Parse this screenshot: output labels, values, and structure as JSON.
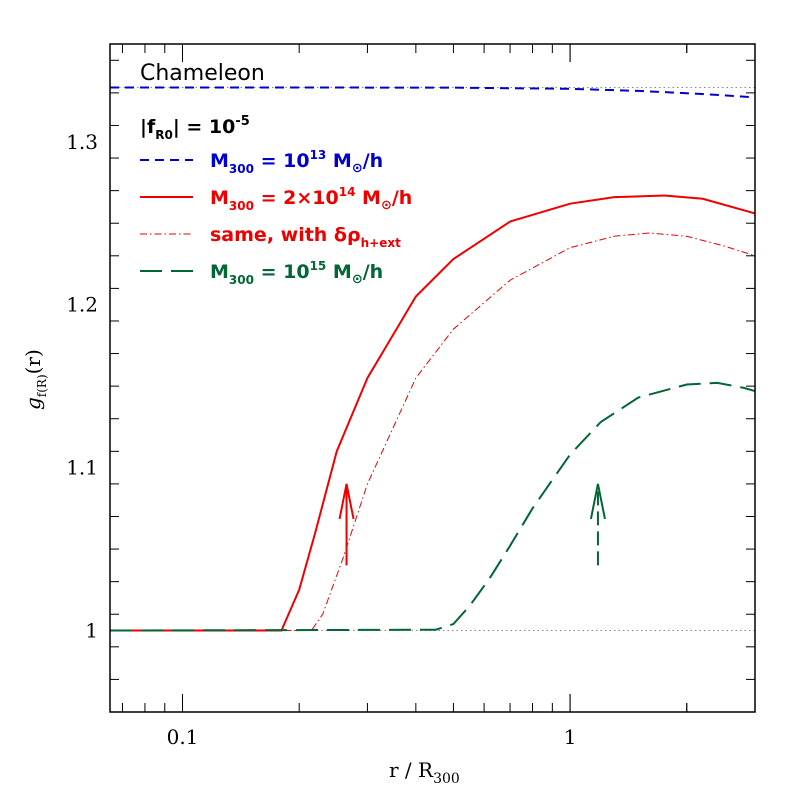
{
  "chart_data": {
    "type": "line",
    "xscale": "log",
    "xlim": [
      0.065,
      3.0
    ],
    "ylim": [
      0.95,
      1.36
    ],
    "xlabel": "r / R",
    "xlabel_sub": "300",
    "ylabel": "g",
    "ylabel_sub": "f(R)",
    "ylabel_suffix": "(r)",
    "xticks": [
      {
        "value": 0.1,
        "label": "0.1"
      },
      {
        "value": 1,
        "label": "1"
      }
    ],
    "yticks": [
      {
        "value": 1.0,
        "label": "1"
      },
      {
        "value": 1.1,
        "label": "1.1"
      },
      {
        "value": 1.2,
        "label": "1.2"
      },
      {
        "value": 1.3,
        "label": "1.3"
      }
    ],
    "annotations": {
      "title": "Chameleon",
      "param_main": "|f",
      "param_sub": "R0",
      "param_rest": "| = 10",
      "param_exp": "-5"
    },
    "reference_lines": [
      {
        "y": 1.0,
        "style": "dotted",
        "color": "#888888"
      },
      {
        "y": 1.3333,
        "style": "dotted",
        "color": "#888888"
      }
    ],
    "series": [
      {
        "name": "M300 = 10^13 M⊙/h",
        "color": "#0000cc",
        "dash": "9,6",
        "width": 2,
        "x": [
          0.065,
          0.2,
          0.5,
          1.0,
          1.5,
          2.0,
          2.5,
          3.0
        ],
        "y": [
          1.3333,
          1.3333,
          1.3332,
          1.3325,
          1.3312,
          1.3298,
          1.3285,
          1.3272
        ]
      },
      {
        "name": "M300 = 2×10^14 M⊙/h",
        "color": "#ee0000",
        "dash": "",
        "width": 2,
        "x": [
          0.065,
          0.18,
          0.2,
          0.22,
          0.25,
          0.3,
          0.4,
          0.5,
          0.7,
          1.0,
          1.3,
          1.75,
          2.2,
          3.0
        ],
        "y": [
          1.0,
          1.0,
          1.025,
          1.06,
          1.11,
          1.155,
          1.205,
          1.228,
          1.251,
          1.262,
          1.266,
          1.267,
          1.265,
          1.256
        ]
      },
      {
        "name": "same, with δρh+ext",
        "color": "#ee0000",
        "dash": "7,3,1.5,3",
        "width": 1,
        "x": [
          0.065,
          0.215,
          0.23,
          0.26,
          0.3,
          0.4,
          0.5,
          0.7,
          1.0,
          1.3,
          1.6,
          2.0,
          2.5,
          3.0
        ],
        "y": [
          1.0,
          1.0,
          1.01,
          1.045,
          1.09,
          1.155,
          1.185,
          1.215,
          1.235,
          1.242,
          1.244,
          1.242,
          1.236,
          1.23
        ]
      },
      {
        "name": "M300 = 10^15 M⊙/h",
        "color": "#006633",
        "dash": "22,9",
        "width": 2,
        "x": [
          0.065,
          0.45,
          0.5,
          0.55,
          0.62,
          0.7,
          0.8,
          1.0,
          1.2,
          1.5,
          2.0,
          2.4,
          2.8,
          3.0
        ],
        "y": [
          1.0,
          1.0005,
          1.004,
          1.015,
          1.032,
          1.052,
          1.075,
          1.108,
          1.128,
          1.143,
          1.151,
          1.152,
          1.149,
          1.147
        ]
      }
    ],
    "legend": [
      {
        "color": "#0000cc",
        "dash": "9,6",
        "width": 2,
        "pre": "M",
        "sub": "300",
        "mid": " = 10",
        "sup": "13",
        "tail": " M",
        "odot": "⊙",
        "end": "/h"
      },
      {
        "color": "#ee0000",
        "dash": "",
        "width": 2,
        "pre": "M",
        "sub": "300",
        "mid": " = 2×10",
        "sup": "14",
        "tail": " M",
        "odot": "⊙",
        "end": "/h"
      },
      {
        "color": "#ee0000",
        "dash": "7,3,1.5,3",
        "width": 1,
        "text": "same, with δρ",
        "sub": "h+ext"
      },
      {
        "color": "#006633",
        "dash": "22,9",
        "width": 2,
        "pre": "M",
        "sub": "300",
        "mid": " = 10",
        "sup": "15",
        "tail": " M",
        "odot": "⊙",
        "end": "/h"
      }
    ],
    "arrows": [
      {
        "x": 0.265,
        "y_from": 1.04,
        "y_to": 1.09,
        "color": "#ee0000",
        "dash": ""
      },
      {
        "x": 1.18,
        "y_from": 1.04,
        "y_to": 1.09,
        "color": "#006633",
        "dash": "14,6"
      }
    ]
  }
}
